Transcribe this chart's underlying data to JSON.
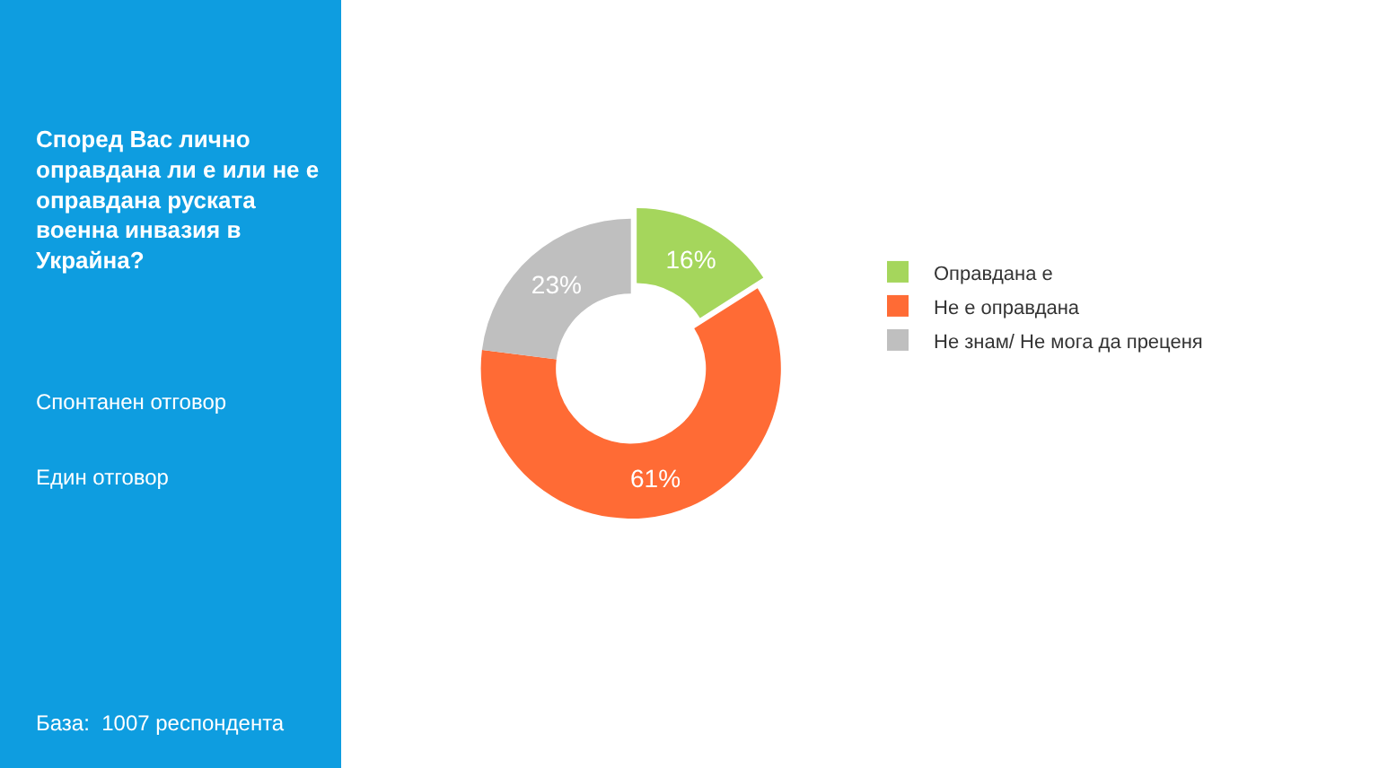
{
  "chart_data": {
    "type": "donut",
    "title": "Според Вас лично оправдана ли е или не е оправдана руската военна инвазия в Украйна?",
    "categories": [
      "Оправдана е",
      "Не е оправдана",
      "Не знам/ Не мога да преценя"
    ],
    "values": [
      16,
      61,
      23
    ],
    "value_labels": [
      "16%",
      "61%",
      "23%"
    ],
    "colors": [
      "#a5d65c",
      "#ff6b35",
      "#bfbfbf"
    ],
    "legend": "right",
    "annotations": [
      "Спонтанен отговор",
      "Един отговор",
      "База:  1007 респондента"
    ]
  }
}
